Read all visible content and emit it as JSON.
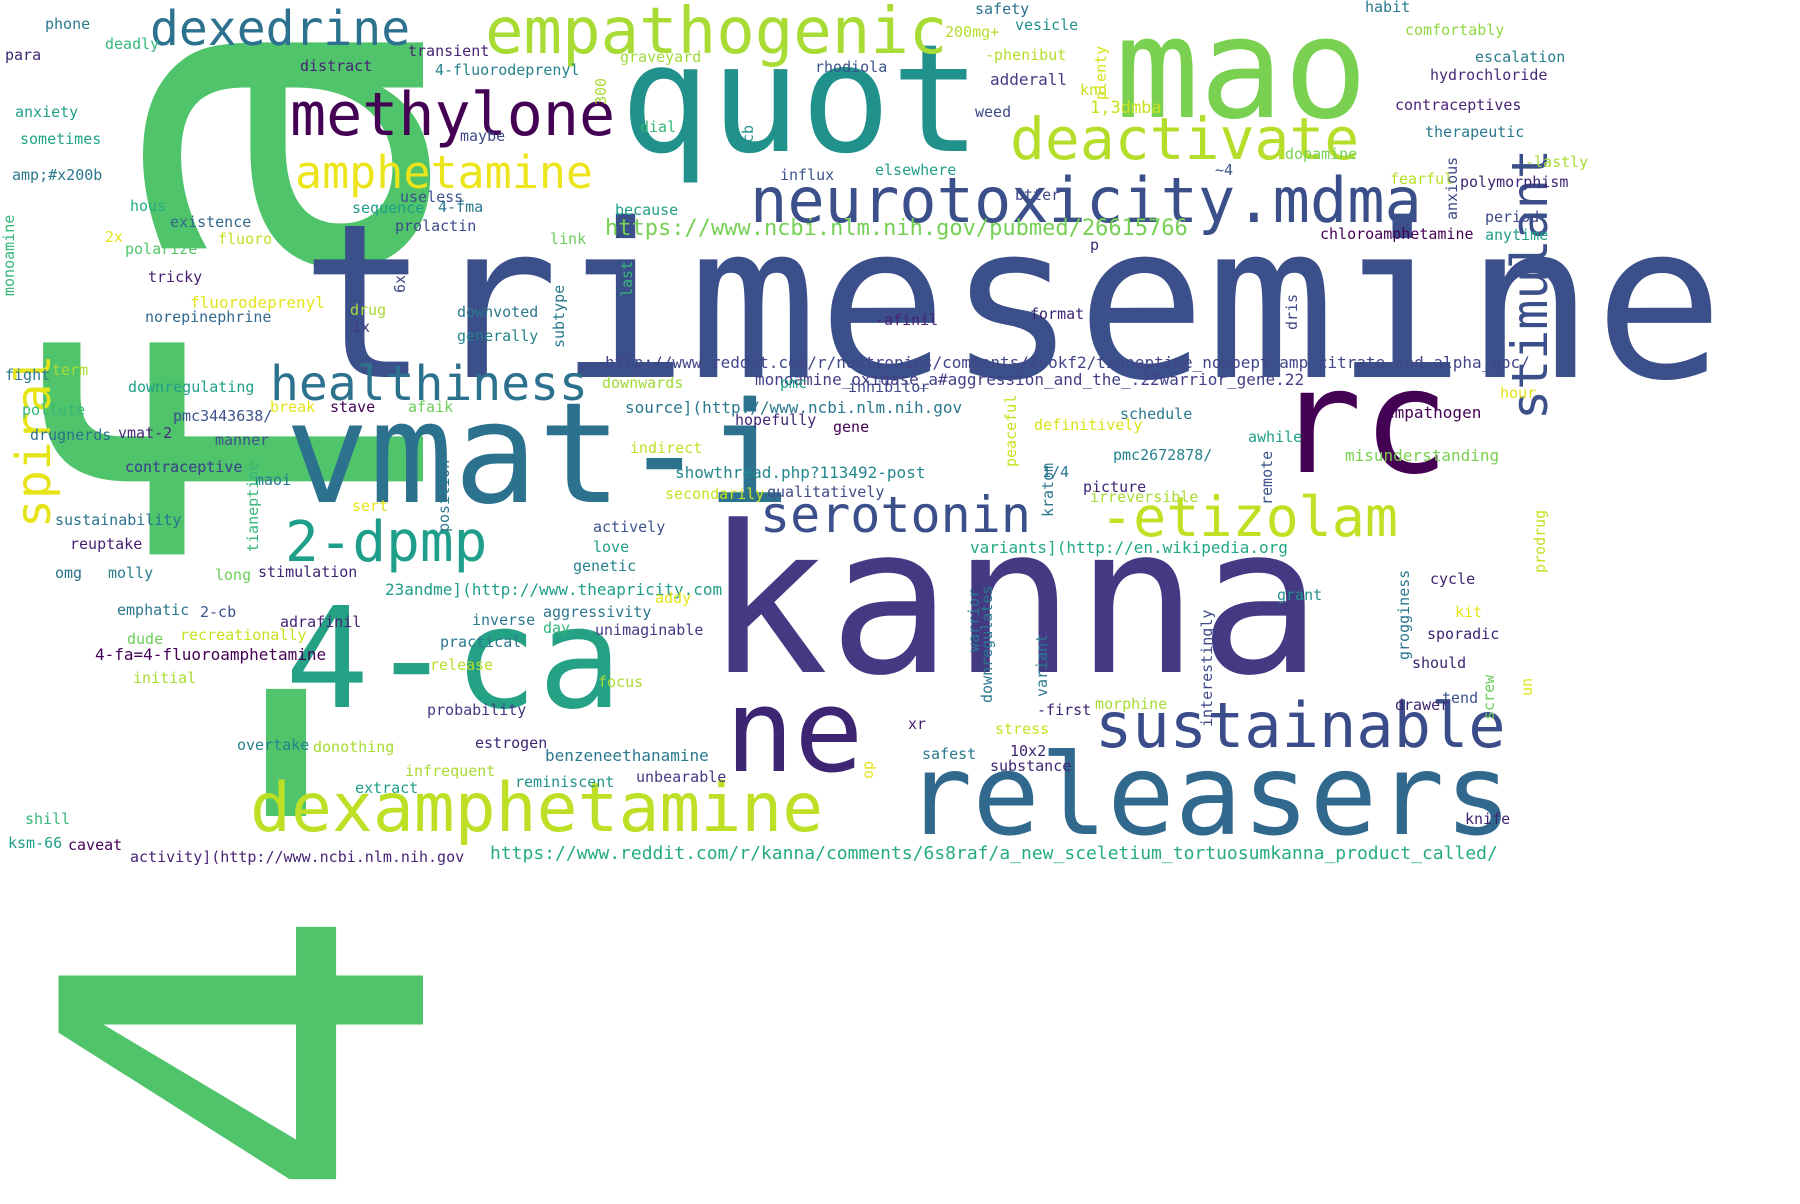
{
  "words": [
    {
      "text": "4-fa",
      "color": "#4fc46a"
    },
    {
      "text": "trimesemine",
      "color": "#3b4f8a"
    },
    {
      "text": "kanna",
      "color": "#443a83"
    },
    {
      "text": "quot",
      "color": "#21918c"
    },
    {
      "text": "mao",
      "color": "#7ad151"
    },
    {
      "text": "rc",
      "color": "#440154"
    },
    {
      "text": "vmat-i",
      "color": "#2c728e"
    },
    {
      "text": "4-ca",
      "color": "#25a186"
    },
    {
      "text": "ne",
      "color": "#3e2573"
    },
    {
      "text": "releasers",
      "color": "#31688e"
    },
    {
      "text": "dexamphetamine",
      "color": "#bddf26"
    },
    {
      "text": "empathogenic",
      "color": "#a8db34"
    },
    {
      "text": "neurotoxicity.mdma",
      "color": "#3b4f8a"
    },
    {
      "text": "methylone",
      "color": "#440154"
    },
    {
      "text": "deactivate",
      "color": "#b5de2b"
    },
    {
      "text": "dexedrine",
      "color": "#2c728e"
    },
    {
      "text": "sustainable",
      "color": "#3a4c8a"
    },
    {
      "text": "serotonin",
      "color": "#3b4f8a"
    },
    {
      "text": "-etizolam",
      "color": "#c2df23"
    },
    {
      "text": "healthiness",
      "color": "#2c728e"
    },
    {
      "text": "2-dpmp",
      "color": "#1f9e89"
    },
    {
      "text": "amphetamine",
      "color": "#ece51b"
    },
    {
      "text": "stimulant",
      "color": "#3b4f8a"
    },
    {
      "text": "spiral",
      "color": "#e5e419"
    },
    {
      "text": "https://www.ncbi.nlm.nih.gov/pubmed/26615766",
      "color": "#75d054"
    },
    {
      "text": "http://www.reddit.com/r/nootropics/comments/2sokf2/tianeptine_noopept_amp_citrate_and_alpha_gpc/",
      "color": "#404688"
    },
    {
      "text": "https://www.reddit.com/r/kanna/comments/6s8raf/a_new_sceletium_tortuosumkanna_product_called/",
      "color": "#25ab82"
    },
    {
      "text": "monoamine_oxidase_a#aggression_and_the_.22warrior_gene.22",
      "color": "#433e85"
    },
    {
      "text": "source](http://www.ncbi.nlm.nih.gov",
      "color": "#2a788e"
    },
    {
      "text": "23andme](http://www.theapricity.com",
      "color": "#1f9e89"
    },
    {
      "text": "variants](http://en.wikipedia.org",
      "color": "#22a884"
    },
    {
      "text": "activity](http://www.ncbi.nlm.nih.gov",
      "color": "#482374"
    },
    {
      "text": "showthread.php?113492-post",
      "color": "#23888e"
    },
    {
      "text": "4-fa=4-fluoroamphetamine",
      "color": "#440154"
    },
    {
      "text": "chloroamphetamine",
      "color": "#440154"
    },
    {
      "text": "misunderstanding",
      "color": "#7ad151"
    },
    {
      "text": "benzeneethanamine",
      "color": "#2a788e"
    },
    {
      "text": "4-fluorodeprenyl",
      "color": "#26828e"
    },
    {
      "text": "fluorodeprenyl",
      "color": "#e5e419"
    },
    {
      "text": "norepinephrine",
      "color": "#31688e"
    },
    {
      "text": "hydrochloride",
      "color": "#482878"
    },
    {
      "text": "contraceptives",
      "color": "#482475"
    },
    {
      "text": "contraceptive",
      "color": "#3e4989"
    },
    {
      "text": "sustainability",
      "color": "#2c728e"
    },
    {
      "text": "polymorphism",
      "color": "#3e2573"
    },
    {
      "text": "empathogen",
      "color": "#440154"
    },
    {
      "text": "therapeutic",
      "color": "#2a788e"
    },
    {
      "text": "comfortably",
      "color": "#90d743"
    },
    {
      "text": "escalation",
      "color": "#287d8e"
    },
    {
      "text": "adderall",
      "color": "#443a83"
    },
    {
      "text": "rhodiola",
      "color": "#3b528b"
    },
    {
      "text": "1,3dmba",
      "color": "#c8e020"
    },
    {
      "text": "-phenibut",
      "color": "#b5de2b"
    },
    {
      "text": "200mg+",
      "color": "#b5de2b"
    },
    {
      "text": "safety",
      "color": "#2c728e"
    },
    {
      "text": "vesicle",
      "color": "#21918c"
    },
    {
      "text": "habit",
      "color": "#2a788e"
    },
    {
      "text": "graveyard",
      "color": "#9fda3a"
    },
    {
      "text": "transient",
      "color": "#482475"
    },
    {
      "text": "distract",
      "color": "#482475"
    },
    {
      "text": "deadly",
      "color": "#35b779"
    },
    {
      "text": "phone",
      "color": "#2a788e"
    },
    {
      "text": "para",
      "color": "#3e2573"
    },
    {
      "text": "anxiety",
      "color": "#1fa088"
    },
    {
      "text": "sometimes",
      "color": "#20a486"
    },
    {
      "text": "amp;#x200b",
      "color": "#2a788e"
    },
    {
      "text": "hous",
      "color": "#27ad81"
    },
    {
      "text": "existence",
      "color": "#31688e"
    },
    {
      "text": "fluoro",
      "color": "#c2df23"
    },
    {
      "text": "polarize",
      "color": "#52c569"
    },
    {
      "text": "2x",
      "color": "#e5e419"
    },
    {
      "text": "tricky",
      "color": "#482173"
    },
    {
      "text": "useless",
      "color": "#3b528b"
    },
    {
      "text": "sequence",
      "color": "#1f9e89"
    },
    {
      "text": "4-fma",
      "color": "#2a788e"
    },
    {
      "text": "prolactin",
      "color": "#3e4989"
    },
    {
      "text": "because",
      "color": "#1f9e89"
    },
    {
      "text": "link",
      "color": "#6ccd5a"
    },
    {
      "text": "dial",
      "color": "#35b779"
    },
    {
      "text": "maybe",
      "color": "#3e4989"
    },
    {
      "text": "influx",
      "color": "#3b528b"
    },
    {
      "text": "elsewhere",
      "color": "#1f9e89"
    },
    {
      "text": "weed",
      "color": "#3e4989"
    },
    {
      "text": "kno",
      "color": "#c8e020"
    },
    {
      "text": "btter",
      "color": "#3e4989"
    },
    {
      "text": "~4",
      "color": "#3b528b"
    },
    {
      "text": "dopamine",
      "color": "#7ad151"
    },
    {
      "text": "fearful",
      "color": "#b5de2b"
    },
    {
      "text": "-lastly",
      "color": "#a8db34"
    },
    {
      "text": "period",
      "color": "#3e4989"
    },
    {
      "text": "anytime",
      "color": "#1f9e89"
    },
    {
      "text": "p",
      "color": "#3e2573"
    },
    {
      "text": "format",
      "color": "#3e2573"
    },
    {
      "text": "-afinil",
      "color": "#482173"
    },
    {
      "text": "drug",
      "color": "#a8db34"
    },
    {
      "text": "downvoted",
      "color": "#2a788e"
    },
    {
      "text": "generally",
      "color": "#26828e"
    },
    {
      "text": "1x",
      "color": "#443a83"
    },
    {
      "text": "term",
      "color": "#a8db34"
    },
    {
      "text": "fight",
      "color": "#2a788e"
    },
    {
      "text": "downregulating",
      "color": "#1f9e89"
    },
    {
      "text": "pollute",
      "color": "#35b779"
    },
    {
      "text": "pmc3443638/",
      "color": "#3b528b"
    },
    {
      "text": "break",
      "color": "#e5e419"
    },
    {
      "text": "stave",
      "color": "#440154"
    },
    {
      "text": "afaik",
      "color": "#6ccd5a"
    },
    {
      "text": "drugnerds",
      "color": "#2c728e"
    },
    {
      "text": "vmat-2",
      "color": "#482878"
    },
    {
      "text": "manner",
      "color": "#3b528b"
    },
    {
      "text": "downwards",
      "color": "#9fda3a"
    },
    {
      "text": "pmc",
      "color": "#1f9e89"
    },
    {
      "text": "inhibitor",
      "color": "#3e4989"
    },
    {
      "text": "schedule",
      "color": "#2a788e"
    },
    {
      "text": "hour",
      "color": "#e5e419"
    },
    {
      "text": "hopefully",
      "color": "#3e2573"
    },
    {
      "text": "gene",
      "color": "#440154"
    },
    {
      "text": "indirect",
      "color": "#bddf26"
    },
    {
      "text": "definitively",
      "color": "#d8e219"
    },
    {
      "text": "awhile",
      "color": "#1f9e89"
    },
    {
      "text": "pmc2672878/",
      "color": "#26828e"
    },
    {
      "text": "1/4",
      "color": "#2a788e"
    },
    {
      "text": "picture",
      "color": "#3e2573"
    },
    {
      "text": "irreversible",
      "color": "#a8db34"
    },
    {
      "text": "qualitatively",
      "color": "#3e4989"
    },
    {
      "text": "secondarily",
      "color": "#c8e020"
    },
    {
      "text": "contraceptive ",
      "color": "#3e4989"
    },
    {
      "text": "maoi",
      "color": "#2a788e"
    },
    {
      "text": "sert",
      "color": "#e5e419"
    },
    {
      "text": "actively",
      "color": "#3b528b"
    },
    {
      "text": "love",
      "color": "#1f9e89"
    },
    {
      "text": "genetic",
      "color": "#26828e"
    },
    {
      "text": "reuptake",
      "color": "#482173"
    },
    {
      "text": "omg",
      "color": "#2c728e"
    },
    {
      "text": "molly",
      "color": "#287d8e"
    },
    {
      "text": "long",
      "color": "#6ccd5a"
    },
    {
      "text": "stimulation",
      "color": "#3e2573"
    },
    {
      "text": "emphatic",
      "color": "#2a788e"
    },
    {
      "text": "2-cb",
      "color": "#3b528b"
    },
    {
      "text": "dude",
      "color": "#6ccd5a"
    },
    {
      "text": "recreationally",
      "color": "#c8e020"
    },
    {
      "text": "adrafinil",
      "color": "#482173"
    },
    {
      "text": "aggressivity",
      "color": "#2a788e"
    },
    {
      "text": "day",
      "color": "#35b779"
    },
    {
      "text": "unimaginable",
      "color": "#443a83"
    },
    {
      "text": "inverse",
      "color": "#2a788e"
    },
    {
      "text": "practical",
      "color": "#2a788e"
    },
    {
      "text": "addy",
      "color": "#e5e419"
    },
    {
      "text": "initial",
      "color": "#a8db34"
    },
    {
      "text": "release",
      "color": "#b5de2b"
    },
    {
      "text": "focus",
      "color": "#a8db34"
    },
    {
      "text": "probability",
      "color": "#443a83"
    },
    {
      "text": "overtake",
      "color": "#26828e"
    },
    {
      "text": "donothing",
      "color": "#a8db34"
    },
    {
      "text": "estrogen",
      "color": "#3e2573"
    },
    {
      "text": "infrequent",
      "color": "#a8db34"
    },
    {
      "text": "reminiscent",
      "color": "#21918c"
    },
    {
      "text": "unbearable",
      "color": "#443a83"
    },
    {
      "text": "extract",
      "color": "#1f9e89"
    },
    {
      "text": "shill",
      "color": "#35b779"
    },
    {
      "text": "ksm-66",
      "color": "#1f9e89"
    },
    {
      "text": "caveat",
      "color": "#440154"
    },
    {
      "text": "grant",
      "color": "#21918c"
    },
    {
      "text": "cycle",
      "color": "#3e2573"
    },
    {
      "text": "kit",
      "color": "#e5e419"
    },
    {
      "text": "sporadic",
      "color": "#3e2573"
    },
    {
      "text": "should",
      "color": "#3e2573"
    },
    {
      "text": "tend",
      "color": "#3b528b"
    },
    {
      "text": "drawer",
      "color": "#3e2573"
    },
    {
      "text": "knife",
      "color": "#3e2573"
    },
    {
      "text": "morphine",
      "color": "#a8db34"
    },
    {
      "text": "-first",
      "color": "#3e2573"
    },
    {
      "text": "xr",
      "color": "#482173"
    },
    {
      "text": "stress",
      "color": "#c8e020"
    },
    {
      "text": "10x2",
      "color": "#3e2573"
    },
    {
      "text": "safest",
      "color": "#2a788e"
    },
    {
      "text": "substance",
      "color": "#3e2573"
    },
    {
      "text": "warrior",
      "color": "#2a788e"
    },
    {
      "text": "downregulates",
      "color": "#2a788e"
    },
    {
      "text": "variant",
      "color": "#2a788e"
    },
    {
      "text": "interestingly",
      "color": "#3e4989"
    },
    {
      "text": "grogginess",
      "color": "#2a788e"
    },
    {
      "text": "screw",
      "color": "#6ccd5a"
    },
    {
      "text": "un",
      "color": "#e5e419"
    },
    {
      "text": "prodrug",
      "color": "#c8e020"
    },
    {
      "text": "remote",
      "color": "#3b528b"
    },
    {
      "text": "kratom",
      "color": "#2a788e"
    },
    {
      "text": "peaceful",
      "color": "#c8e020"
    },
    {
      "text": "position",
      "color": "#2a788e"
    },
    {
      "text": "tianeptine",
      "color": "#35b779"
    },
    {
      "text": "monoamine",
      "color": "#35b779"
    },
    {
      "text": "6x",
      "color": "#3e4989"
    },
    {
      "text": "subtype",
      "color": "#2a788e"
    },
    {
      "text": "last",
      "color": "#35b779"
    },
    {
      "text": "2cb",
      "color": "#21918c"
    },
    {
      "text": "300",
      "color": "#a8db34"
    },
    {
      "text": "plenty",
      "color": "#d8e219"
    },
    {
      "text": "anxious",
      "color": "#3e4989"
    },
    {
      "text": "dris",
      "color": "#3e4989"
    },
    {
      "text": "op",
      "color": "#e5e419"
    }
  ]
}
